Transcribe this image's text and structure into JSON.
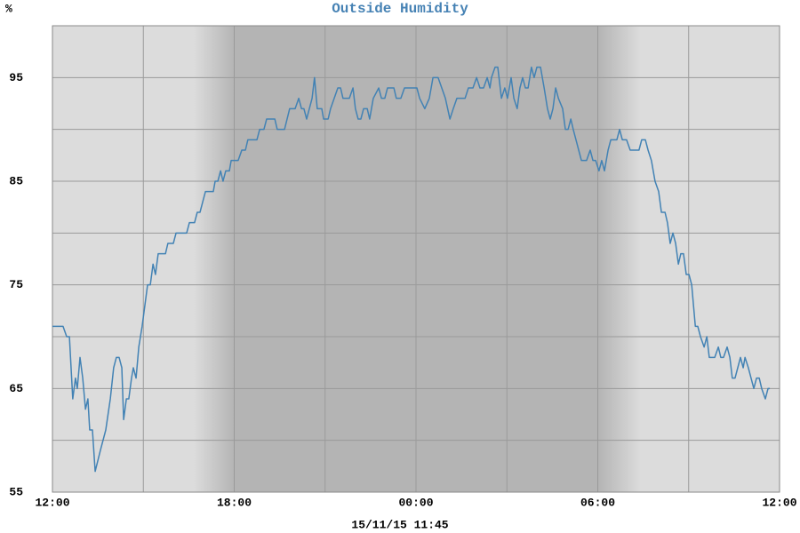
{
  "chart_data": {
    "type": "line",
    "title": "Outside Humidity",
    "y_label": "%",
    "footer": "15/11/15 11:45",
    "color": "#4282b4",
    "grid": true,
    "xlim": [
      0,
      24
    ],
    "xticks": [
      {
        "value": 0,
        "label": "12:00"
      },
      {
        "value": 6,
        "label": "18:00"
      },
      {
        "value": 12,
        "label": "00:00"
      },
      {
        "value": 18,
        "label": "06:00"
      },
      {
        "value": 24,
        "label": "12:00"
      }
    ],
    "xminor": [
      3,
      9,
      15,
      21
    ],
    "ylim": [
      55,
      100
    ],
    "yticks": [
      55,
      65,
      75,
      85,
      95
    ],
    "yminor": [
      60,
      70,
      80,
      90,
      100
    ],
    "x": [
      0,
      0.35,
      0.47,
      0.56,
      0.67,
      0.76,
      0.82,
      0.91,
      1.0,
      1.09,
      1.17,
      1.23,
      1.32,
      1.41,
      1.58,
      1.76,
      1.91,
      2.02,
      2.11,
      2.2,
      2.29,
      2.35,
      2.44,
      2.52,
      2.61,
      2.67,
      2.76,
      2.85,
      2.96,
      3.05,
      3.14,
      3.23,
      3.32,
      3.4,
      3.49,
      3.73,
      3.81,
      3.99,
      4.08,
      4.43,
      4.52,
      4.69,
      4.78,
      4.87,
      4.96,
      5.05,
      5.13,
      5.31,
      5.37,
      5.46,
      5.55,
      5.63,
      5.72,
      5.84,
      5.9,
      6.13,
      6.25,
      6.37,
      6.45,
      6.75,
      6.84,
      6.98,
      7.07,
      7.34,
      7.42,
      7.66,
      7.83,
      8.01,
      8.13,
      8.22,
      8.3,
      8.39,
      8.48,
      8.57,
      8.65,
      8.74,
      8.89,
      8.95,
      9.1,
      9.18,
      9.3,
      9.42,
      9.51,
      9.59,
      9.8,
      9.92,
      10.0,
      10.09,
      10.18,
      10.27,
      10.39,
      10.47,
      10.59,
      10.77,
      10.86,
      10.97,
      11.06,
      11.27,
      11.35,
      11.5,
      11.62,
      11.91,
      12.03,
      12.12,
      12.29,
      12.44,
      12.56,
      12.73,
      12.85,
      12.97,
      13.12,
      13.23,
      13.35,
      13.62,
      13.73,
      13.88,
      14.0,
      14.11,
      14.23,
      14.35,
      14.44,
      14.49,
      14.61,
      14.7,
      14.82,
      14.93,
      15.02,
      15.14,
      15.23,
      15.34,
      15.43,
      15.52,
      15.61,
      15.7,
      15.81,
      15.9,
      15.99,
      16.11,
      16.23,
      16.34,
      16.43,
      16.52,
      16.61,
      16.7,
      16.84,
      16.93,
      17.02,
      17.11,
      17.19,
      17.28,
      17.37,
      17.46,
      17.63,
      17.75,
      17.84,
      17.93,
      18.04,
      18.13,
      18.22,
      18.34,
      18.43,
      18.54,
      18.63,
      18.72,
      18.81,
      18.95,
      19.07,
      19.36,
      19.45,
      19.57,
      19.66,
      19.77,
      19.89,
      20.01,
      20.1,
      20.22,
      20.3,
      20.39,
      20.48,
      20.57,
      20.66,
      20.74,
      20.83,
      20.92,
      21.01,
      21.1,
      21.22,
      21.3,
      21.39,
      21.51,
      21.6,
      21.68,
      21.86,
      21.98,
      22.06,
      22.15,
      22.27,
      22.36,
      22.44,
      22.53,
      22.62,
      22.71,
      22.8,
      22.86,
      22.97,
      23.06,
      23.15,
      23.24,
      23.33,
      23.41,
      23.53,
      23.62,
      23.68
    ],
    "values": [
      71,
      71,
      70,
      70,
      64,
      66,
      65,
      68,
      66,
      63,
      64,
      61,
      61,
      57,
      59,
      61,
      64,
      67,
      68,
      68,
      67,
      62,
      64,
      64,
      66,
      67,
      66,
      69,
      71,
      73,
      75,
      75,
      77,
      76,
      78,
      78,
      79,
      79,
      80,
      80,
      81,
      81,
      82,
      82,
      83,
      84,
      84,
      84,
      85,
      85,
      86,
      85,
      86,
      86,
      87,
      87,
      88,
      88,
      89,
      89,
      90,
      90,
      91,
      91,
      90,
      90,
      92,
      92,
      93,
      92,
      92,
      91,
      92,
      93,
      95,
      92,
      92,
      91,
      91,
      92,
      93,
      94,
      94,
      93,
      93,
      94,
      92,
      91,
      91,
      92,
      92,
      91,
      93,
      94,
      93,
      93,
      94,
      94,
      93,
      93,
      94,
      94,
      94,
      93,
      92,
      93,
      95,
      95,
      94,
      93,
      91,
      92,
      93,
      93,
      94,
      94,
      95,
      94,
      94,
      95,
      94,
      95,
      96,
      96,
      93,
      94,
      93,
      95,
      93,
      92,
      94,
      95,
      94,
      94,
      96,
      95,
      96,
      96,
      94,
      92,
      91,
      92,
      94,
      93,
      92,
      90,
      90,
      91,
      90,
      89,
      88,
      87,
      87,
      88,
      87,
      87,
      86,
      87,
      86,
      88,
      89,
      89,
      89,
      90,
      89,
      89,
      88,
      88,
      89,
      89,
      88,
      87,
      85,
      84,
      82,
      82,
      81,
      79,
      80,
      79,
      77,
      78,
      78,
      76,
      76,
      75,
      71,
      71,
      70,
      69,
      70,
      68,
      68,
      69,
      68,
      68,
      69,
      68,
      66,
      66,
      67,
      68,
      67,
      68,
      67,
      66,
      65,
      66,
      66,
      65,
      64,
      65,
      65
    ]
  }
}
